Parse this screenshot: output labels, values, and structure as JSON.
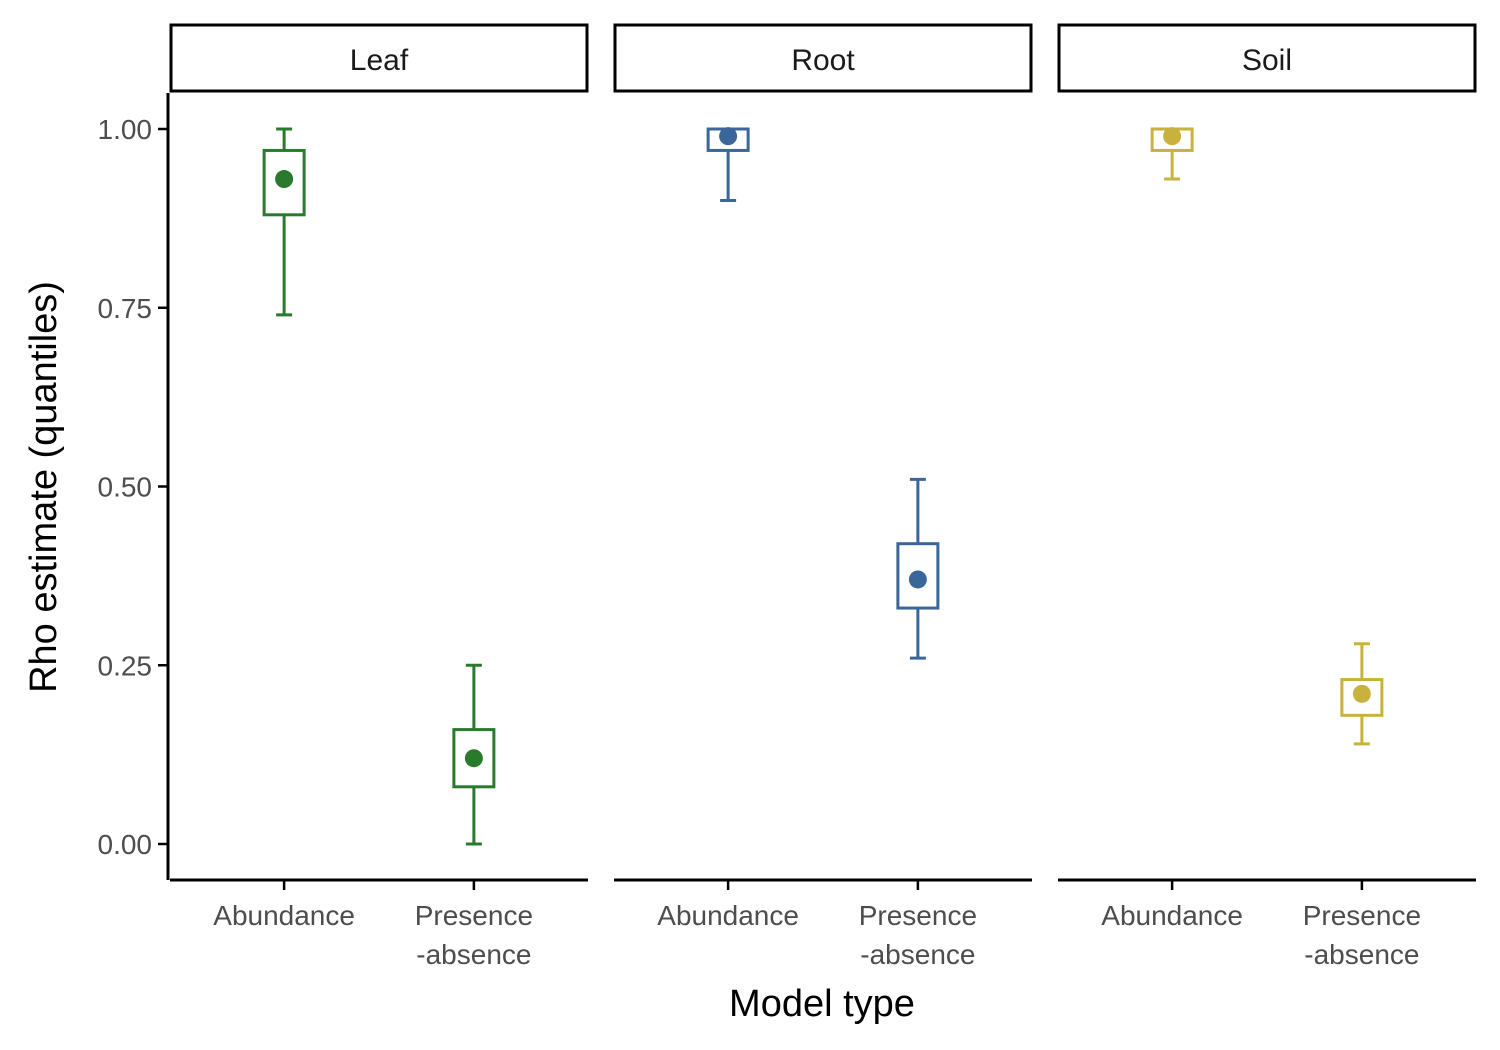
{
  "chart_data": {
    "type": "scatter",
    "xlabel": "Model type",
    "ylabel": "Rho estimate (quantiles)",
    "ylim": [
      -0.05,
      1.05
    ],
    "y_ticks": [
      "0.00",
      "0.25",
      "0.50",
      "0.75",
      "1.00"
    ],
    "y_tick_values": [
      0,
      0.25,
      0.5,
      0.75,
      1.0
    ],
    "categories": [
      "Abundance",
      "Presence\n-absence"
    ],
    "grid": false,
    "legend": "none",
    "panels": [
      {
        "label": "Leaf",
        "color": "#2a7a2e",
        "points": [
          {
            "category": "Abundance",
            "median": 0.93,
            "q25": 0.88,
            "q75": 0.97,
            "low": 0.74,
            "high": 1.0
          },
          {
            "category": "Presence\n-absence",
            "median": 0.12,
            "q25": 0.08,
            "q75": 0.16,
            "low": 0.0,
            "high": 0.25
          }
        ]
      },
      {
        "label": "Root",
        "color": "#3b6699",
        "points": [
          {
            "category": "Abundance",
            "median": 0.99,
            "q25": 0.97,
            "q75": 1.0,
            "low": 0.9,
            "high": 1.0
          },
          {
            "category": "Presence\n-absence",
            "median": 0.37,
            "q25": 0.33,
            "q75": 0.42,
            "low": 0.26,
            "high": 0.51
          }
        ]
      },
      {
        "label": "Soil",
        "color": "#c8b23d",
        "points": [
          {
            "category": "Abundance",
            "median": 0.99,
            "q25": 0.97,
            "q75": 1.0,
            "low": 0.93,
            "high": 1.0
          },
          {
            "category": "Presence\n-absence",
            "median": 0.21,
            "q25": 0.18,
            "q75": 0.23,
            "low": 0.14,
            "high": 0.28
          }
        ]
      }
    ]
  }
}
